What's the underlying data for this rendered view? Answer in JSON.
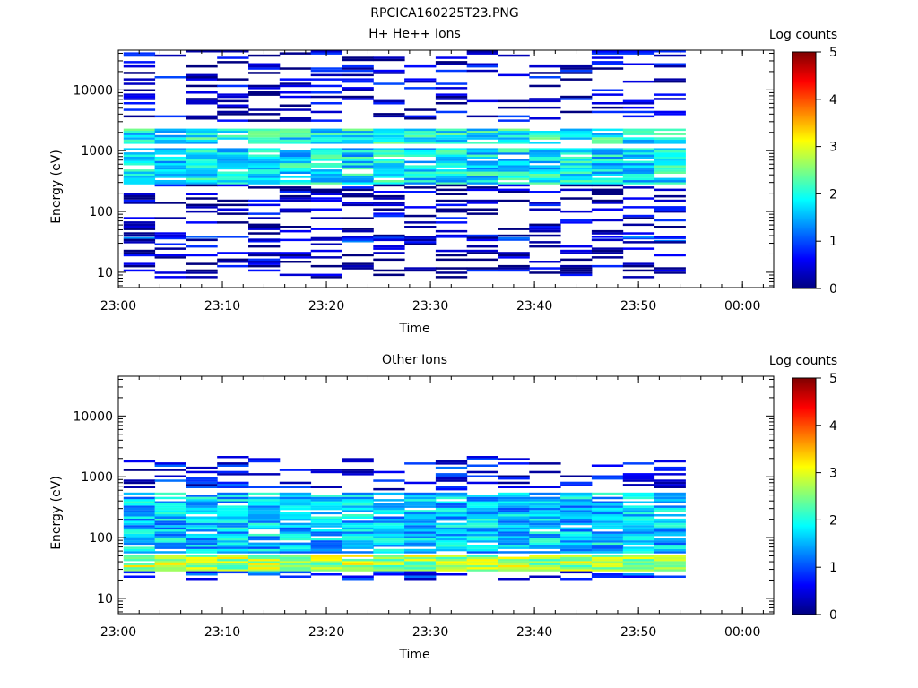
{
  "figure_title": "RPCICA160225T23.PNG",
  "colormap": [
    "#00007f",
    "#0000ff",
    "#007fff",
    "#00ffff",
    "#7fff7f",
    "#ffff00",
    "#ff7f00",
    "#ff0000",
    "#7f0000"
  ],
  "chart_data": [
    {
      "type": "heatmap",
      "title": "H+ He++ Ions",
      "xlabel": "Time",
      "ylabel": "Energy (eV)",
      "yscale": "log",
      "ylim": [
        5.6,
        45000
      ],
      "xlim": [
        "23:00",
        "00:03"
      ],
      "xticks": [
        "23:00",
        "23:10",
        "23:20",
        "23:30",
        "23:40",
        "23:50",
        "00:00"
      ],
      "yticks": [
        {
          "value": 10,
          "label": "10"
        },
        {
          "value": 100,
          "label": "100"
        },
        {
          "value": 1000,
          "label": "1000"
        },
        {
          "value": 10000,
          "label": "10000"
        }
      ],
      "colorbar": {
        "label": "Log counts",
        "range": [
          0,
          5
        ],
        "ticks": [
          "0",
          "1",
          "2",
          "3",
          "4",
          "5"
        ]
      },
      "time_bins": [
        "23:02",
        "23:05",
        "23:08",
        "23:11",
        "23:14",
        "23:17",
        "23:20",
        "23:23",
        "23:26",
        "23:29",
        "23:32",
        "23:35",
        "23:38",
        "23:41",
        "23:44",
        "23:47",
        "23:50",
        "23:53"
      ],
      "bands": [
        {
          "name": "background_speckle",
          "emin": 3000,
          "emax": 45000,
          "value": 0.4
        },
        {
          "name": "main_band_upper",
          "emin": 1300,
          "emax": 2300,
          "value": 1.9
        },
        {
          "name": "main_band_lower",
          "emin": 280,
          "emax": 1100,
          "value": 1.8
        },
        {
          "name": "low_energy_line",
          "emin": 32,
          "emax": 40,
          "value": 0.8
        },
        {
          "name": "scattered_low",
          "emin": 8,
          "emax": 280,
          "value": 0.3
        }
      ]
    },
    {
      "type": "heatmap",
      "title": "Other Ions",
      "xlabel": "Time",
      "ylabel": "Energy (eV)",
      "yscale": "log",
      "ylim": [
        5.6,
        45000
      ],
      "xlim": [
        "23:00",
        "00:03"
      ],
      "xticks": [
        "23:00",
        "23:10",
        "23:20",
        "23:30",
        "23:40",
        "23:50",
        "00:00"
      ],
      "yticks": [
        {
          "value": 10,
          "label": "10"
        },
        {
          "value": 100,
          "label": "100"
        },
        {
          "value": 1000,
          "label": "1000"
        },
        {
          "value": 10000,
          "label": "10000"
        }
      ],
      "colorbar": {
        "label": "Log counts",
        "range": [
          0,
          5
        ],
        "ticks": [
          "0",
          "1",
          "2",
          "3",
          "4",
          "5"
        ]
      },
      "time_bins": [
        "23:02",
        "23:05",
        "23:08",
        "23:11",
        "23:14",
        "23:17",
        "23:20",
        "23:23",
        "23:26",
        "23:29",
        "23:32",
        "23:35",
        "23:38",
        "23:41",
        "23:44",
        "23:47",
        "23:50",
        "23:53"
      ],
      "bands": [
        {
          "name": "high_energy_sparse",
          "emin": 600,
          "emax": 2200,
          "value": 0.6
        },
        {
          "name": "mid_band",
          "emin": 55,
          "emax": 550,
          "value": 1.6
        },
        {
          "name": "peak_band",
          "emin": 28,
          "emax": 52,
          "value": 2.7
        },
        {
          "name": "bottom_edge",
          "emin": 20,
          "emax": 28,
          "value": 0.9
        }
      ]
    }
  ]
}
